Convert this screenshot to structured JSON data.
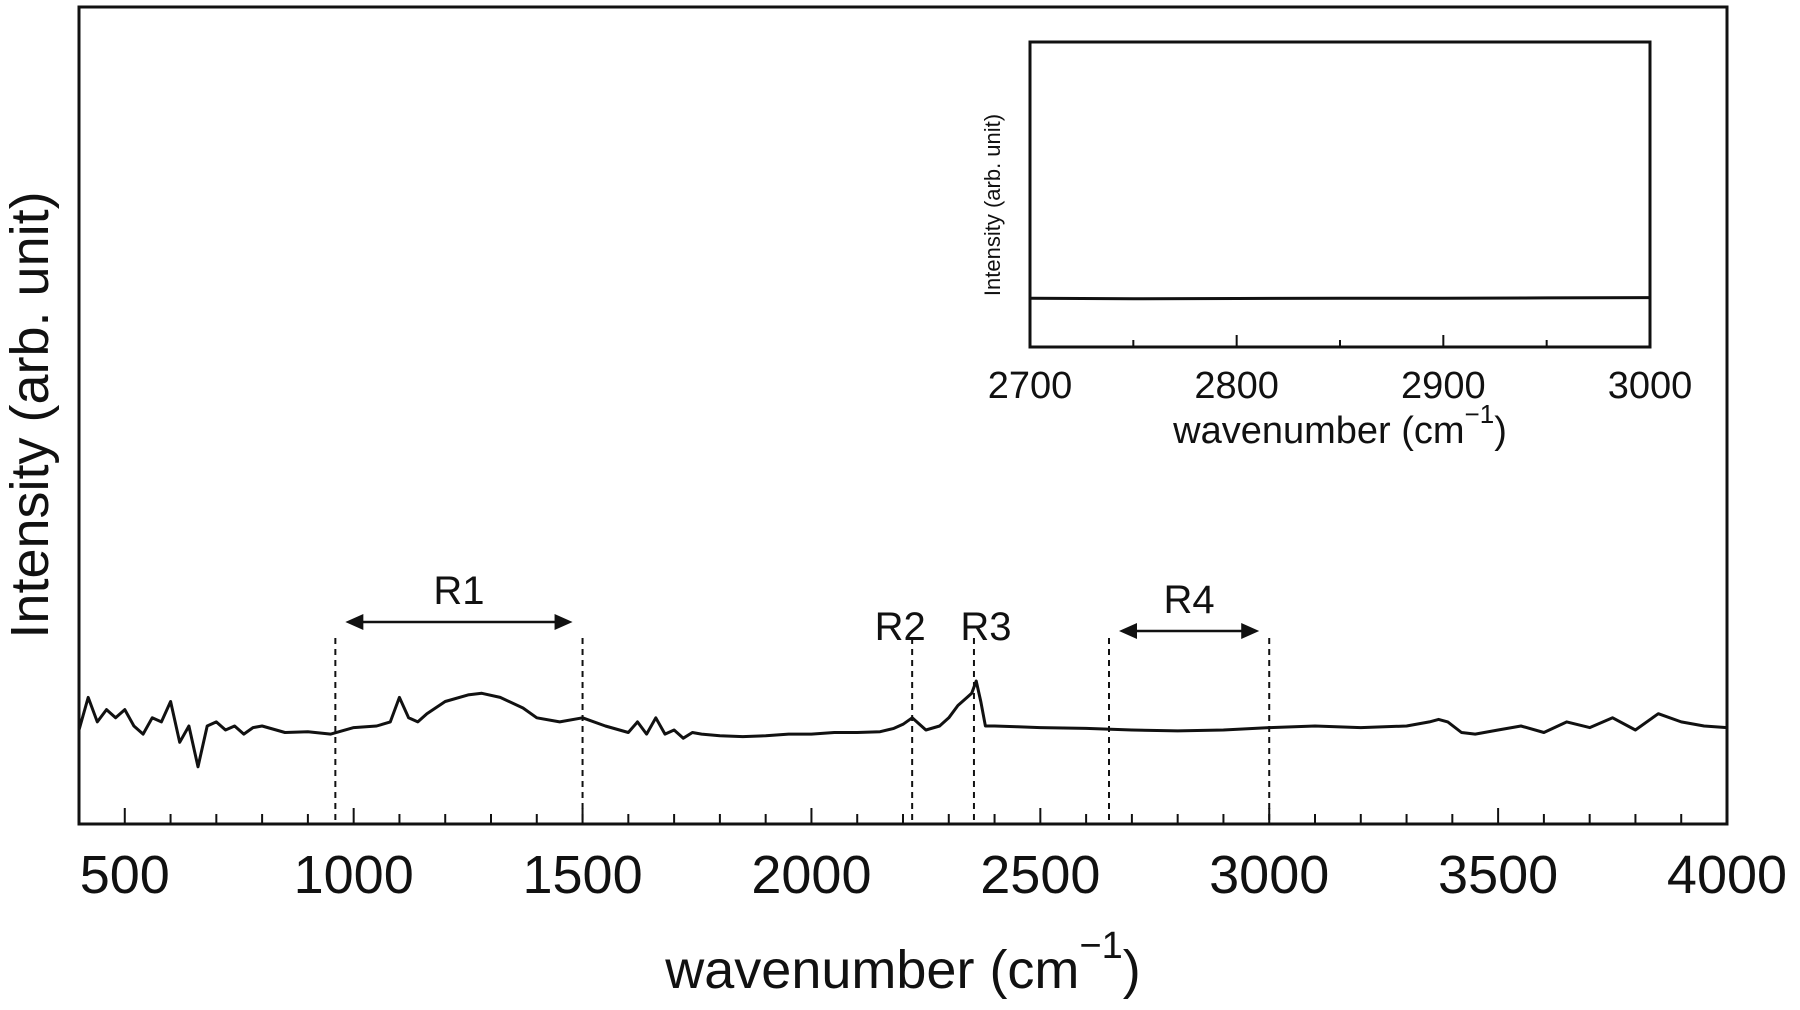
{
  "chart_data": [
    {
      "type": "line",
      "xlabel": "wavenumber (cm",
      "xlabel_sup": "−1",
      "xlabel_close": ")",
      "ylabel": "Intensity (arb. unit)",
      "xlim": [
        400,
        4000
      ],
      "ylim": [
        0,
        1
      ],
      "y_ticks_labeled": false,
      "x_ticks": [
        500,
        1000,
        1500,
        2000,
        2500,
        3000,
        3500,
        4000
      ],
      "x_tick_labels": [
        "500",
        "1000",
        "1500",
        "2000",
        "2500",
        "3000",
        "3500",
        "4000"
      ],
      "x_minor_tick_step": 100,
      "grid": false,
      "series": [
        {
          "x": [
            400,
            420,
            440,
            460,
            480,
            500,
            520,
            540,
            560,
            580,
            600,
            620,
            640,
            660,
            680,
            700,
            720,
            740,
            760,
            780,
            800,
            850,
            900,
            950,
            1000,
            1050,
            1080,
            1100,
            1120,
            1140,
            1160,
            1200,
            1250,
            1280,
            1320,
            1370,
            1400,
            1450,
            1500,
            1550,
            1600,
            1620,
            1640,
            1660,
            1680,
            1700,
            1720,
            1740,
            1760,
            1800,
            1850,
            1900,
            1950,
            2000,
            2050,
            2100,
            2150,
            2180,
            2200,
            2220,
            2250,
            2280,
            2300,
            2320,
            2340,
            2350,
            2360,
            2370,
            2380,
            2400,
            2450,
            2500,
            2600,
            2700,
            2800,
            2900,
            3000,
            3100,
            3200,
            3300,
            3350,
            3370,
            3390,
            3420,
            3450,
            3500,
            3550,
            3600,
            3650,
            3700,
            3750,
            3800,
            3850,
            3900,
            3950,
            4000
          ],
          "y": [
            0.115,
            0.155,
            0.125,
            0.14,
            0.13,
            0.14,
            0.12,
            0.11,
            0.13,
            0.125,
            0.15,
            0.1,
            0.12,
            0.07,
            0.12,
            0.125,
            0.115,
            0.12,
            0.11,
            0.118,
            0.12,
            0.112,
            0.113,
            0.11,
            0.118,
            0.12,
            0.125,
            0.155,
            0.13,
            0.125,
            0.135,
            0.15,
            0.158,
            0.16,
            0.155,
            0.142,
            0.13,
            0.125,
            0.13,
            0.12,
            0.112,
            0.125,
            0.11,
            0.13,
            0.11,
            0.115,
            0.105,
            0.112,
            0.11,
            0.108,
            0.107,
            0.108,
            0.11,
            0.11,
            0.112,
            0.112,
            0.113,
            0.117,
            0.122,
            0.13,
            0.115,
            0.12,
            0.13,
            0.145,
            0.155,
            0.16,
            0.175,
            0.15,
            0.12,
            0.12,
            0.119,
            0.118,
            0.117,
            0.115,
            0.114,
            0.115,
            0.118,
            0.12,
            0.118,
            0.12,
            0.125,
            0.128,
            0.125,
            0.112,
            0.11,
            0.115,
            0.12,
            0.112,
            0.125,
            0.118,
            0.13,
            0.115,
            0.135,
            0.125,
            0.12,
            0.118
          ]
        }
      ],
      "regions": [
        {
          "label": "R1",
          "start": 960,
          "end": 1500
        },
        {
          "label": "R2",
          "start": 2220,
          "end": 2220
        },
        {
          "label": "R3",
          "start": 2355,
          "end": 2355
        },
        {
          "label": "R4",
          "start": 2650,
          "end": 3000
        }
      ]
    },
    {
      "type": "line",
      "inset": true,
      "xlabel": "wavenumber (cm",
      "xlabel_sup": "−1",
      "xlabel_close": ")",
      "ylabel": "Intensity (arb. unit)",
      "xlim": [
        2700,
        3000
      ],
      "ylim": [
        0,
        1
      ],
      "x_ticks": [
        2700,
        2800,
        2900,
        3000
      ],
      "x_tick_labels": [
        "2700",
        "2800",
        "2900",
        "3000"
      ],
      "x_minor_tick_step": 50,
      "series": [
        {
          "x": [
            2700,
            2750,
            2800,
            2850,
            2900,
            2950,
            3000
          ],
          "y": [
            0.16,
            0.158,
            0.159,
            0.16,
            0.16,
            0.161,
            0.162
          ]
        }
      ]
    }
  ]
}
